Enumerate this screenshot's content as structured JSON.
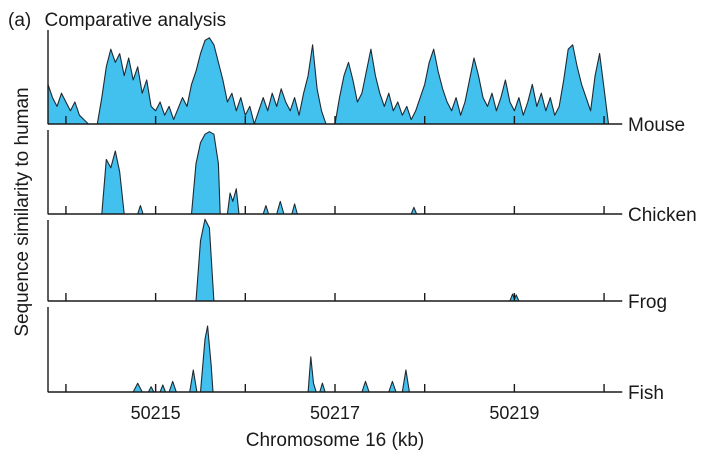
{
  "chart_data": {
    "type": "area",
    "panel_label": "(a)",
    "title": "Comparative analysis",
    "xlabel": "Chromosome 16 (kb)",
    "ylabel": "Sequence similarity to human",
    "xlim": [
      50213.8,
      50220.2
    ],
    "x_ticks": [
      50214,
      50215,
      50216,
      50217,
      50218,
      50219,
      50220
    ],
    "x_tick_labels": [
      "50215",
      "50217",
      "50219"
    ],
    "x_tick_label_values": [
      50215,
      50217,
      50219
    ],
    "ylim": [
      0,
      1
    ],
    "series": [
      {
        "name": "Mouse",
        "points": [
          [
            50213.8,
            0.45
          ],
          [
            50213.85,
            0.3
          ],
          [
            50213.9,
            0.2
          ],
          [
            50213.95,
            0.35
          ],
          [
            50214.0,
            0.25
          ],
          [
            50214.05,
            0.15
          ],
          [
            50214.1,
            0.25
          ],
          [
            50214.15,
            0.1
          ],
          [
            50214.2,
            0.05
          ],
          [
            50214.25,
            0.0
          ],
          [
            50214.35,
            0.0
          ],
          [
            50214.4,
            0.3
          ],
          [
            50214.45,
            0.65
          ],
          [
            50214.5,
            0.85
          ],
          [
            50214.55,
            0.7
          ],
          [
            50214.6,
            0.8
          ],
          [
            50214.65,
            0.55
          ],
          [
            50214.7,
            0.75
          ],
          [
            50214.75,
            0.5
          ],
          [
            50214.8,
            0.65
          ],
          [
            50214.85,
            0.35
          ],
          [
            50214.9,
            0.5
          ],
          [
            50214.95,
            0.2
          ],
          [
            50215.0,
            0.15
          ],
          [
            50215.05,
            0.25
          ],
          [
            50215.1,
            0.1
          ],
          [
            50215.15,
            0.2
          ],
          [
            50215.2,
            0.05
          ],
          [
            50215.3,
            0.3
          ],
          [
            50215.35,
            0.2
          ],
          [
            50215.4,
            0.45
          ],
          [
            50215.45,
            0.6
          ],
          [
            50215.5,
            0.8
          ],
          [
            50215.55,
            0.95
          ],
          [
            50215.6,
            0.98
          ],
          [
            50215.65,
            0.9
          ],
          [
            50215.7,
            0.7
          ],
          [
            50215.75,
            0.5
          ],
          [
            50215.8,
            0.25
          ],
          [
            50215.85,
            0.35
          ],
          [
            50215.9,
            0.15
          ],
          [
            50215.95,
            0.3
          ],
          [
            50216.0,
            0.1
          ],
          [
            50216.05,
            0.2
          ],
          [
            50216.1,
            0.0
          ],
          [
            50216.2,
            0.3
          ],
          [
            50216.25,
            0.15
          ],
          [
            50216.3,
            0.35
          ],
          [
            50216.35,
            0.2
          ],
          [
            50216.4,
            0.4
          ],
          [
            50216.45,
            0.25
          ],
          [
            50216.5,
            0.15
          ],
          [
            50216.55,
            0.3
          ],
          [
            50216.6,
            0.1
          ],
          [
            50216.65,
            0.35
          ],
          [
            50216.7,
            0.55
          ],
          [
            50216.75,
            0.9
          ],
          [
            50216.8,
            0.4
          ],
          [
            50216.85,
            0.15
          ],
          [
            50216.9,
            0.0
          ],
          [
            50217.0,
            0.0
          ],
          [
            50217.05,
            0.3
          ],
          [
            50217.1,
            0.55
          ],
          [
            50217.15,
            0.7
          ],
          [
            50217.2,
            0.5
          ],
          [
            50217.25,
            0.25
          ],
          [
            50217.3,
            0.35
          ],
          [
            50217.35,
            0.6
          ],
          [
            50217.4,
            0.85
          ],
          [
            50217.45,
            0.55
          ],
          [
            50217.5,
            0.35
          ],
          [
            50217.55,
            0.2
          ],
          [
            50217.6,
            0.35
          ],
          [
            50217.65,
            0.15
          ],
          [
            50217.7,
            0.25
          ],
          [
            50217.75,
            0.1
          ],
          [
            50217.8,
            0.2
          ],
          [
            50217.85,
            0.05
          ],
          [
            50217.9,
            0.15
          ],
          [
            50217.95,
            0.3
          ],
          [
            50218.0,
            0.45
          ],
          [
            50218.05,
            0.7
          ],
          [
            50218.1,
            0.85
          ],
          [
            50218.15,
            0.6
          ],
          [
            50218.2,
            0.4
          ],
          [
            50218.25,
            0.25
          ],
          [
            50218.3,
            0.15
          ],
          [
            50218.35,
            0.3
          ],
          [
            50218.4,
            0.1
          ],
          [
            50218.45,
            0.25
          ],
          [
            50218.5,
            0.5
          ],
          [
            50218.55,
            0.75
          ],
          [
            50218.6,
            0.55
          ],
          [
            50218.65,
            0.3
          ],
          [
            50218.7,
            0.2
          ],
          [
            50218.75,
            0.35
          ],
          [
            50218.8,
            0.15
          ],
          [
            50218.85,
            0.3
          ],
          [
            50218.9,
            0.5
          ],
          [
            50218.95,
            0.25
          ],
          [
            50219.0,
            0.15
          ],
          [
            50219.05,
            0.3
          ],
          [
            50219.1,
            0.1
          ],
          [
            50219.15,
            0.25
          ],
          [
            50219.2,
            0.45
          ],
          [
            50219.25,
            0.2
          ],
          [
            50219.3,
            0.35
          ],
          [
            50219.35,
            0.15
          ],
          [
            50219.4,
            0.3
          ],
          [
            50219.45,
            0.1
          ],
          [
            50219.5,
            0.2
          ],
          [
            50219.55,
            0.5
          ],
          [
            50219.6,
            0.85
          ],
          [
            50219.65,
            0.9
          ],
          [
            50219.7,
            0.65
          ],
          [
            50219.75,
            0.45
          ],
          [
            50219.8,
            0.3
          ],
          [
            50219.85,
            0.15
          ],
          [
            50219.9,
            0.55
          ],
          [
            50219.95,
            0.8
          ],
          [
            50220.0,
            0.4
          ],
          [
            50220.05,
            0.0
          ],
          [
            50220.2,
            0.0
          ]
        ]
      },
      {
        "name": "Chicken",
        "points": [
          [
            50213.8,
            0.0
          ],
          [
            50214.4,
            0.0
          ],
          [
            50214.45,
            0.65
          ],
          [
            50214.5,
            0.55
          ],
          [
            50214.55,
            0.75
          ],
          [
            50214.6,
            0.5
          ],
          [
            50214.65,
            0.0
          ],
          [
            50214.8,
            0.0
          ],
          [
            50214.83,
            0.1
          ],
          [
            50214.86,
            0.0
          ],
          [
            50215.4,
            0.0
          ],
          [
            50215.45,
            0.6
          ],
          [
            50215.5,
            0.85
          ],
          [
            50215.55,
            0.95
          ],
          [
            50215.6,
            0.98
          ],
          [
            50215.65,
            0.95
          ],
          [
            50215.7,
            0.6
          ],
          [
            50215.72,
            0.0
          ],
          [
            50215.8,
            0.0
          ],
          [
            50215.83,
            0.25
          ],
          [
            50215.86,
            0.15
          ],
          [
            50215.9,
            0.3
          ],
          [
            50215.93,
            0.0
          ],
          [
            50216.2,
            0.0
          ],
          [
            50216.23,
            0.1
          ],
          [
            50216.26,
            0.0
          ],
          [
            50216.35,
            0.0
          ],
          [
            50216.39,
            0.15
          ],
          [
            50216.43,
            0.0
          ],
          [
            50216.52,
            0.0
          ],
          [
            50216.55,
            0.12
          ],
          [
            50216.58,
            0.0
          ],
          [
            50217.85,
            0.0
          ],
          [
            50217.88,
            0.08
          ],
          [
            50217.91,
            0.0
          ],
          [
            50220.2,
            0.0
          ]
        ]
      },
      {
        "name": "Frog",
        "points": [
          [
            50213.8,
            0.0
          ],
          [
            50215.45,
            0.0
          ],
          [
            50215.5,
            0.7
          ],
          [
            50215.55,
            0.95
          ],
          [
            50215.6,
            0.85
          ],
          [
            50215.65,
            0.0
          ],
          [
            50218.95,
            0.0
          ],
          [
            50218.98,
            0.08
          ],
          [
            50219.0,
            0.02
          ],
          [
            50219.02,
            0.07
          ],
          [
            50219.05,
            0.0
          ],
          [
            50220.2,
            0.0
          ]
        ]
      },
      {
        "name": "Fish",
        "points": [
          [
            50213.8,
            0.0
          ],
          [
            50214.75,
            0.0
          ],
          [
            50214.8,
            0.1
          ],
          [
            50214.85,
            0.0
          ],
          [
            50214.92,
            0.0
          ],
          [
            50214.95,
            0.06
          ],
          [
            50214.98,
            0.0
          ],
          [
            50215.05,
            0.0
          ],
          [
            50215.08,
            0.08
          ],
          [
            50215.11,
            0.0
          ],
          [
            50215.15,
            0.0
          ],
          [
            50215.19,
            0.12
          ],
          [
            50215.23,
            0.0
          ],
          [
            50215.38,
            0.0
          ],
          [
            50215.42,
            0.25
          ],
          [
            50215.46,
            0.0
          ],
          [
            50215.5,
            0.0
          ],
          [
            50215.55,
            0.6
          ],
          [
            50215.58,
            0.75
          ],
          [
            50215.62,
            0.3
          ],
          [
            50215.64,
            0.0
          ],
          [
            50216.7,
            0.0
          ],
          [
            50216.73,
            0.4
          ],
          [
            50216.76,
            0.1
          ],
          [
            50216.79,
            0.0
          ],
          [
            50216.83,
            0.0
          ],
          [
            50216.86,
            0.1
          ],
          [
            50216.89,
            0.0
          ],
          [
            50217.3,
            0.0
          ],
          [
            50217.34,
            0.12
          ],
          [
            50217.38,
            0.0
          ],
          [
            50217.6,
            0.0
          ],
          [
            50217.64,
            0.12
          ],
          [
            50217.68,
            0.0
          ],
          [
            50217.75,
            0.0
          ],
          [
            50217.79,
            0.25
          ],
          [
            50217.83,
            0.0
          ],
          [
            50220.2,
            0.0
          ]
        ]
      }
    ],
    "grid": false,
    "legend": "series names at right end of each panel baseline",
    "color_fill": "#42c0ee",
    "color_stroke": "#1f2a33"
  }
}
